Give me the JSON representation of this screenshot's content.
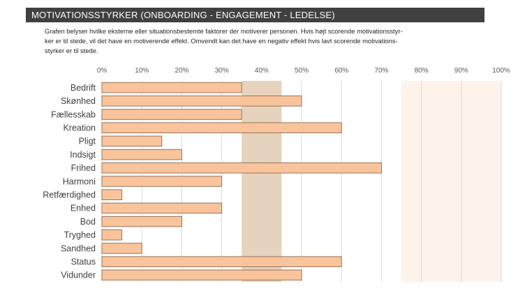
{
  "header": {
    "title": "MOTIVATIONSSTYRKER (ONBOARDING - ENGAGEMENT - LEDELSE)"
  },
  "description": {
    "lines": [
      "Grafen belyser hvilke eksterne eller situationsbestemte faktorer der motiverer personen. Hvis højt scorende motivationsstyr-",
      "ker er til stede, vil det have en motiverende effekt. Omvendt kan det have en negativ effekt hvis lavt scorende motivations-",
      "styrker er til stede."
    ]
  },
  "colors": {
    "bar_fill": "#f9c49b",
    "bar_stroke": "#8c6a50",
    "band_mid": "#e6d3bd",
    "band_high": "#fdf3ea",
    "grid": "#d9d9d9",
    "title_bg": "#404040"
  },
  "chart_data": {
    "type": "bar",
    "orientation": "horizontal",
    "title": "",
    "xlabel": "",
    "ylabel": "",
    "xlim": [
      0,
      100
    ],
    "x_ticks": [
      0,
      10,
      20,
      30,
      40,
      50,
      60,
      70,
      80,
      90,
      100
    ],
    "x_tick_labels": [
      "0%",
      "10%",
      "20%",
      "30%",
      "40%",
      "50%",
      "60%",
      "70%",
      "80%",
      "90%",
      "100%"
    ],
    "categories": [
      "Bedrift",
      "Skønhed",
      "Fællesskab",
      "Kreation",
      "Pligt",
      "Indsigt",
      "Frihed",
      "Harmoni",
      "Retfærdighed",
      "Enhed",
      "Bod",
      "Tryghed",
      "Sandhed",
      "Status",
      "Vidunder"
    ],
    "values": [
      35,
      50,
      35,
      60,
      15,
      20,
      70,
      30,
      5,
      30,
      20,
      5,
      10,
      60,
      50
    ],
    "bands": [
      {
        "name": "mid-range",
        "from": 35,
        "to": 45
      },
      {
        "name": "high-range",
        "from": 75,
        "to": 100
      }
    ],
    "grid": true
  }
}
